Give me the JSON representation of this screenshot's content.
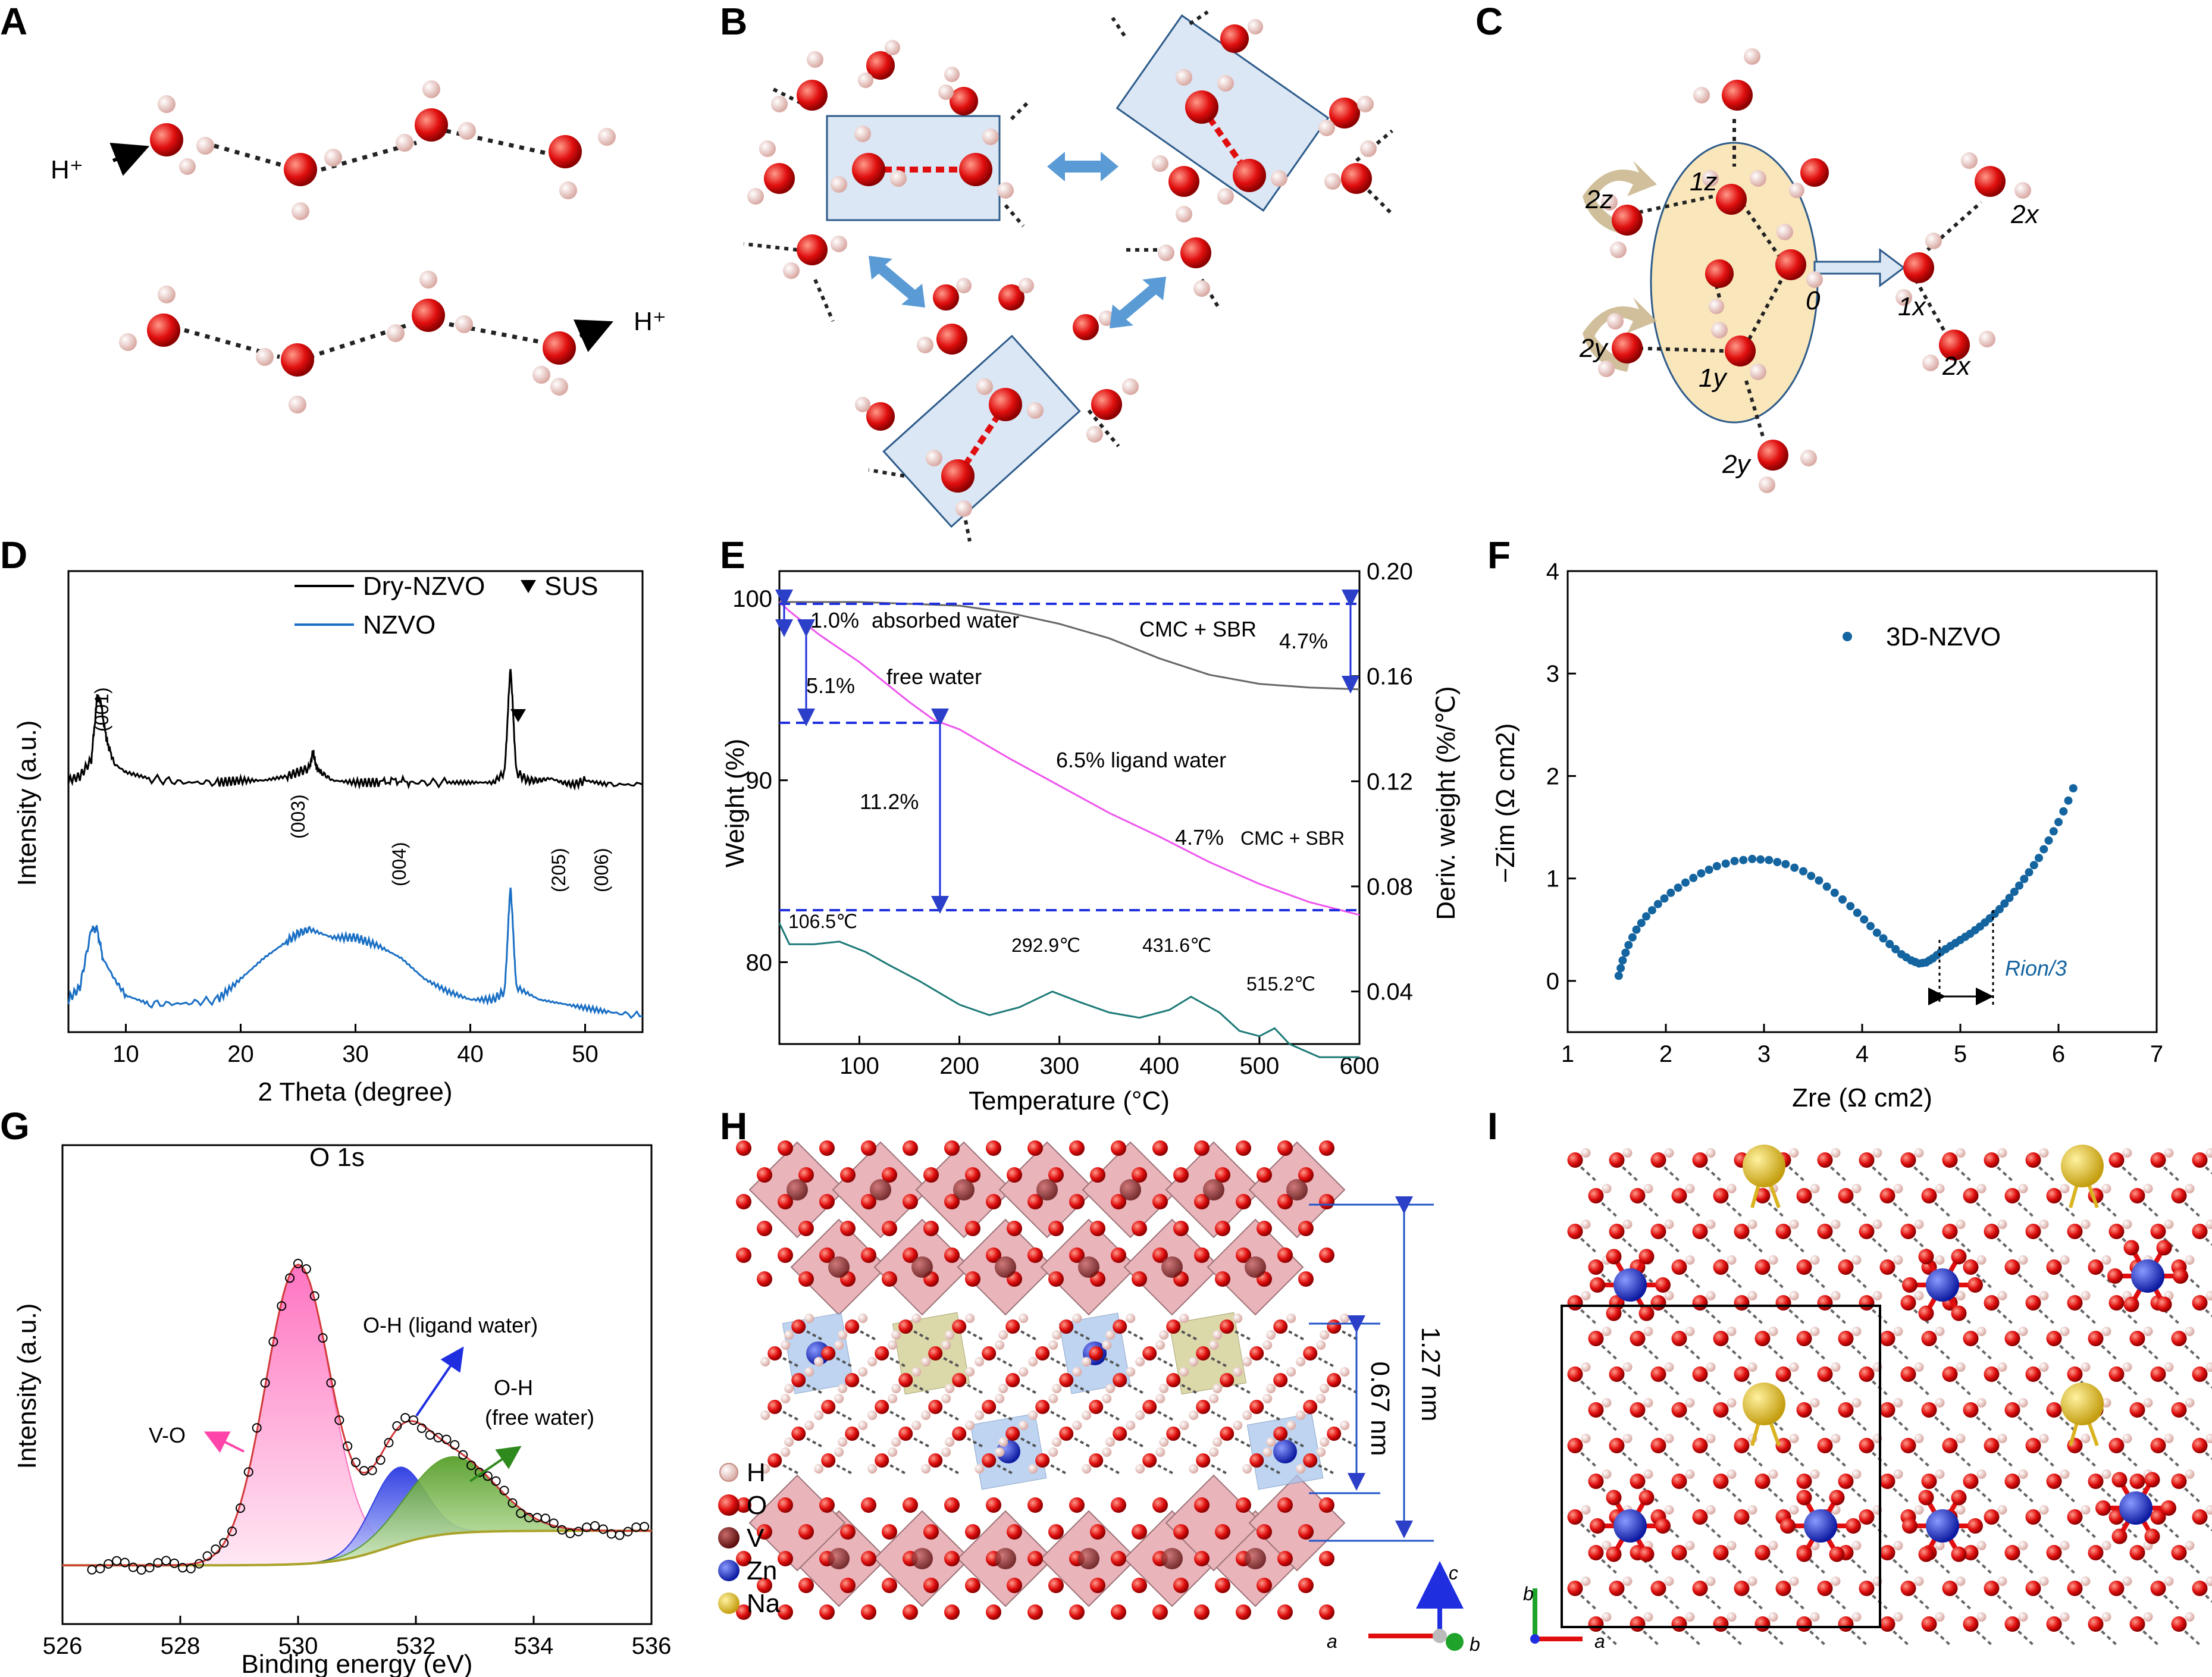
{
  "panel_labels": [
    "A",
    "B",
    "C",
    "D",
    "E",
    "F",
    "G",
    "H",
    "I"
  ],
  "panelA": {
    "h1": "H⁺",
    "h2": "H⁺"
  },
  "panelC": {
    "labels": [
      "2z",
      "1z",
      "2x",
      "0",
      "1x",
      "2y",
      "1y",
      "2x",
      "2y"
    ]
  },
  "panelH": {
    "dim_small": "0.67 nm",
    "dim_large": "1.27 nm",
    "legend": [
      "H",
      "O",
      "V",
      "Zn",
      "Na"
    ],
    "axes": {
      "a": "a",
      "b": "b",
      "c": "c"
    },
    "colors": {
      "H": "#f4d7d3",
      "O": "#e00e0e",
      "V": "#7a1414",
      "Zn": "#1a2fd0",
      "Na": "#e6c531"
    }
  },
  "panelI": {
    "axes": {
      "a": "a",
      "b": "b"
    }
  },
  "chart_data": [
    {
      "panel": "D",
      "type": "line",
      "xlabel": "2 Theta (degree)",
      "ylabel": "Intensity (a.u.)",
      "xlim": [
        5,
        55
      ],
      "xticks": [
        "10",
        "20",
        "30",
        "40",
        "50"
      ],
      "legend": [
        "Dry-NZVO",
        "NZVO",
        "SUS"
      ],
      "series": [
        {
          "name": "Dry-NZVO",
          "color": "#000000",
          "x": [
            5,
            6,
            7,
            7.5,
            7.8,
            8.3,
            9,
            10,
            12,
            15,
            18,
            20,
            22,
            24,
            25,
            26,
            26.3,
            26.6,
            27,
            28,
            30,
            32,
            33.5,
            35,
            38,
            40,
            42,
            43,
            43.5,
            44,
            45,
            46,
            47,
            48,
            49,
            50,
            52,
            55
          ],
          "y": [
            0.58,
            0.59,
            0.63,
            0.78,
            0.77,
            0.68,
            0.62,
            0.6,
            0.585,
            0.575,
            0.575,
            0.58,
            0.58,
            0.59,
            0.6,
            0.61,
            0.65,
            0.61,
            0.6,
            0.58,
            0.575,
            0.575,
            0.58,
            0.575,
            0.575,
            0.575,
            0.575,
            0.6,
            0.86,
            0.6,
            0.58,
            0.58,
            0.585,
            0.575,
            0.57,
            0.58,
            0.57,
            0.57
          ]
        },
        {
          "name": "NZVO",
          "color": "#1a6fc4",
          "x": [
            5,
            6,
            7,
            7.5,
            8,
            9,
            10,
            12,
            15,
            18,
            20,
            22,
            24,
            25,
            26,
            28,
            30,
            32,
            34,
            36,
            38,
            40,
            42,
            43,
            43.5,
            44,
            46,
            48,
            50,
            52,
            55
          ],
          "y": [
            0.05,
            0.08,
            0.22,
            0.22,
            0.15,
            0.1,
            0.06,
            0.04,
            0.04,
            0.05,
            0.1,
            0.15,
            0.19,
            0.21,
            0.22,
            0.2,
            0.2,
            0.18,
            0.15,
            0.1,
            0.07,
            0.05,
            0.05,
            0.07,
            0.33,
            0.08,
            0.05,
            0.04,
            0.03,
            0.02,
            0.01
          ]
        }
      ],
      "annotations": [
        "(001)",
        "(003)",
        "(004)",
        "(205)",
        "(006)"
      ]
    },
    {
      "panel": "E",
      "type": "line",
      "xlabel": "Temperature (°C)",
      "ylabel": "Weight (%)",
      "ylabel_right": "Deriv. weight (%/℃)",
      "xlim": [
        20,
        600
      ],
      "ylim": [
        75.5,
        101.5
      ],
      "ylim_right": [
        0.02,
        0.2
      ],
      "xticks": [
        "100",
        "200",
        "300",
        "400",
        "500",
        "600"
      ],
      "yticks": [
        "80",
        "90",
        "100"
      ],
      "yticks_right": [
        "0.04",
        "0.08",
        "0.12",
        "0.16",
        "0.20"
      ],
      "series": [
        {
          "name": "CMC+SBR",
          "color": "#666666",
          "x": [
            20,
            100,
            200,
            250,
            300,
            350,
            400,
            450,
            500,
            550,
            600
          ],
          "y": [
            99.8,
            99.8,
            99.6,
            99.2,
            98.6,
            97.8,
            96.7,
            95.8,
            95.3,
            95.1,
            95.0
          ]
        },
        {
          "name": "NZVO",
          "color": "#ee55ee",
          "x": [
            20,
            30,
            60,
            100,
            150,
            175,
            200,
            250,
            300,
            350,
            400,
            450,
            500,
            550,
            600
          ],
          "y": [
            99.8,
            99.3,
            98.0,
            96.5,
            94.3,
            93.3,
            92.8,
            91.2,
            89.7,
            88.2,
            86.9,
            85.5,
            84.3,
            83.3,
            82.6
          ]
        },
        {
          "name": "DTG",
          "color": "#1d7a78",
          "x": [
            20,
            30,
            55,
            80,
            106.5,
            130,
            160,
            200,
            230,
            260,
            292.9,
            320,
            350,
            380,
            410,
            431.6,
            460,
            480,
            500,
            515.2,
            530,
            560,
            600
          ],
          "y": [
            0.066,
            0.058,
            0.058,
            0.059,
            0.055,
            0.05,
            0.044,
            0.035,
            0.031,
            0.034,
            0.04,
            0.036,
            0.032,
            0.03,
            0.033,
            0.038,
            0.032,
            0.025,
            0.023,
            0.026,
            0.02,
            0.015,
            0.015
          ]
        }
      ],
      "annotations": [
        "1.0%",
        "absorbed water",
        "5.1%",
        "free water",
        "11.2%",
        "6.5% ligand water",
        "4.7%",
        "CMC + SBR",
        "CMC + SBR",
        "4.7%",
        "106.5℃",
        "292.9℃",
        "431.6℃",
        "515.2℃"
      ]
    },
    {
      "panel": "F",
      "type": "scatter",
      "xlabel": "Zre (Ω cm2)",
      "ylabel": "−Zim (Ω cm2)",
      "xlim": [
        1,
        7
      ],
      "ylim": [
        -0.5,
        4
      ],
      "xticks": [
        "1",
        "2",
        "3",
        "4",
        "5",
        "6",
        "7"
      ],
      "yticks": [
        "0",
        "1",
        "2",
        "3",
        "4"
      ],
      "series": [
        {
          "name": "3D-NZVO",
          "color": "#1464a0",
          "x": [
            1.52,
            1.56,
            1.62,
            1.7,
            1.8,
            1.92,
            2.05,
            2.2,
            2.36,
            2.52,
            2.7,
            2.88,
            3.05,
            3.22,
            3.4,
            3.56,
            3.72,
            3.88,
            4.02,
            4.15,
            4.28,
            4.4,
            4.5,
            4.58,
            4.65,
            4.72,
            4.8,
            4.9,
            5.0,
            5.1,
            5.2,
            5.3,
            5.4,
            5.5,
            5.6,
            5.7,
            5.8,
            5.9,
            6.0,
            6.1,
            6.2
          ],
          "y": [
            0.05,
            0.2,
            0.35,
            0.5,
            0.63,
            0.75,
            0.86,
            0.96,
            1.05,
            1.12,
            1.17,
            1.19,
            1.18,
            1.14,
            1.07,
            0.98,
            0.86,
            0.73,
            0.6,
            0.47,
            0.36,
            0.26,
            0.2,
            0.17,
            0.18,
            0.22,
            0.28,
            0.34,
            0.4,
            0.46,
            0.53,
            0.61,
            0.7,
            0.81,
            0.93,
            1.06,
            1.2,
            1.37,
            1.55,
            1.76,
            2.0
          ]
        }
      ],
      "annotations": [
        "3D-NZVO",
        "Rion/3"
      ]
    },
    {
      "panel": "G",
      "type": "line",
      "title": "O 1s",
      "xlabel": "Binding energy (eV)",
      "ylabel": "Intensity (a.u.)",
      "xlim": [
        526,
        536
      ],
      "xticks": [
        "526",
        "528",
        "530",
        "532",
        "534",
        "536"
      ],
      "peaks": [
        {
          "name": "V-O",
          "center": 530.0,
          "color": "#ff66bb"
        },
        {
          "name": "O-H (ligand water)",
          "center": 531.7,
          "color": "#1f2fe0"
        },
        {
          "name": "O-H (free water)",
          "center": 532.6,
          "color": "#4f9a1e"
        }
      ],
      "annotations": [
        "V-O",
        "O-H (ligand water)",
        "O-H",
        "(free water)"
      ]
    }
  ]
}
